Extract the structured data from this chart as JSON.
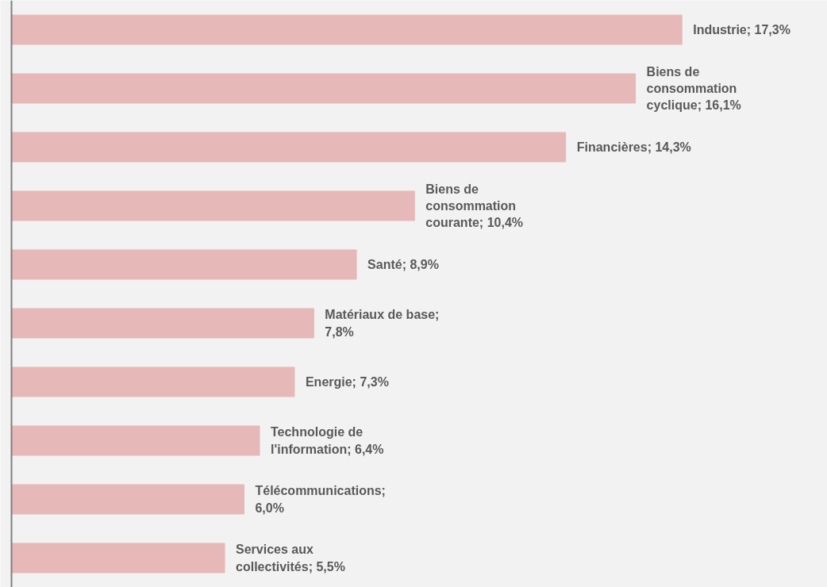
{
  "chart_data": {
    "type": "bar",
    "orientation": "horizontal",
    "tick_labels": false,
    "grid": false,
    "categories": [
      null,
      null,
      null,
      null,
      null,
      null,
      null,
      null,
      null,
      null
    ],
    "values": [
      17.3,
      16.1,
      14.3,
      10.4,
      8.9,
      7.8,
      7.3,
      6.4,
      6.0,
      5.5
    ],
    "color": "#e6b8b7",
    "value_labels": [
      "Industrie; 17,3%",
      "Biens de\nconsommation\ncyclique; 16,1%",
      "Financières; 14,3%",
      "Biens de\nconsommation\ncourante; 10,4%",
      "Santé; 8,9%",
      "Matériaux de base;\n7,8%",
      "Energie; 7,3%",
      "Technologie de\nl'information; 6,4%",
      "Télécommunications;\n6,0%",
      "Services aux\ncollectivités; 5,5%"
    ]
  }
}
